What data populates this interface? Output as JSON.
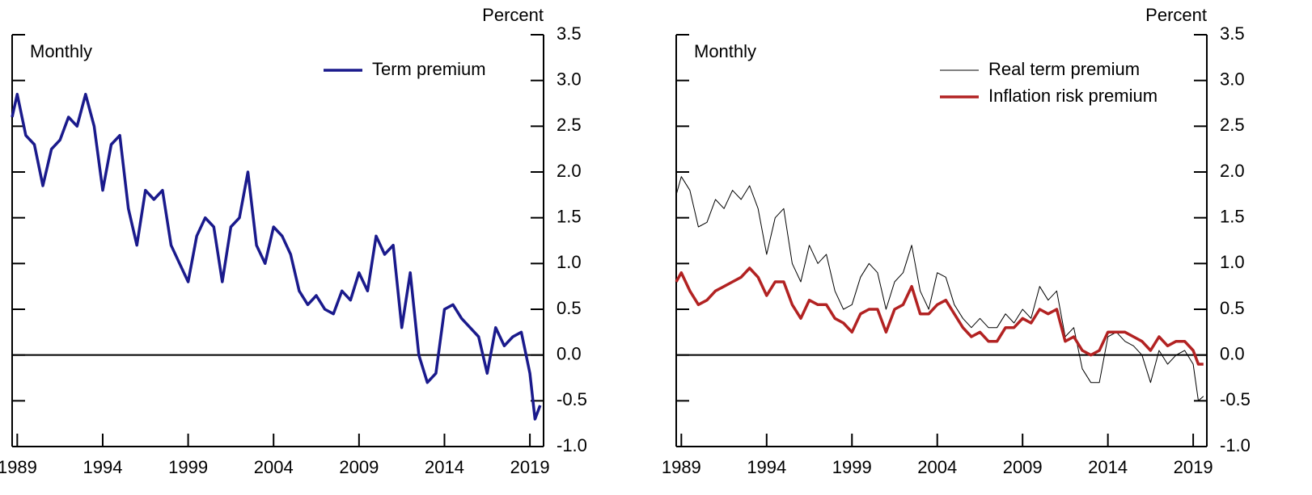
{
  "chart_data": [
    {
      "type": "line",
      "label_top": "Percent",
      "annotation": "Monthly",
      "x": [
        1988.7,
        1989.0,
        1989.5,
        1990.0,
        1990.5,
        1991.0,
        1991.5,
        1992.0,
        1992.5,
        1993.0,
        1993.5,
        1994.0,
        1994.5,
        1995.0,
        1995.5,
        1996.0,
        1996.5,
        1997.0,
        1997.5,
        1998.0,
        1998.5,
        1999.0,
        1999.5,
        2000.0,
        2000.5,
        2001.0,
        2001.5,
        2002.0,
        2002.5,
        2003.0,
        2003.5,
        2004.0,
        2004.5,
        2005.0,
        2005.5,
        2006.0,
        2006.5,
        2007.0,
        2007.5,
        2008.0,
        2008.5,
        2009.0,
        2009.5,
        2010.0,
        2010.5,
        2011.0,
        2011.5,
        2012.0,
        2012.5,
        2013.0,
        2013.5,
        2014.0,
        2014.5,
        2015.0,
        2015.5,
        2016.0,
        2016.5,
        2017.0,
        2017.5,
        2018.0,
        2018.5,
        2019.0,
        2019.3,
        2019.6
      ],
      "series": [
        {
          "name": "Term premium",
          "color": "#1a1a8c",
          "values": [
            2.6,
            2.85,
            2.4,
            2.3,
            1.85,
            2.25,
            2.35,
            2.6,
            2.5,
            2.85,
            2.5,
            1.8,
            2.3,
            2.4,
            1.6,
            1.2,
            1.8,
            1.7,
            1.8,
            1.2,
            1.0,
            0.8,
            1.3,
            1.5,
            1.4,
            0.8,
            1.4,
            1.5,
            2.0,
            1.2,
            1.0,
            1.4,
            1.3,
            1.1,
            0.7,
            0.55,
            0.65,
            0.5,
            0.45,
            0.7,
            0.6,
            0.9,
            0.7,
            1.3,
            1.1,
            1.2,
            0.3,
            0.9,
            0.0,
            -0.3,
            -0.2,
            0.5,
            0.55,
            0.4,
            0.3,
            0.2,
            -0.2,
            0.3,
            0.1,
            0.2,
            0.25,
            -0.2,
            -0.7,
            -0.55
          ]
        }
      ],
      "xlim": [
        1988.7,
        2019.8
      ],
      "xticks": [
        1989,
        1994,
        1999,
        2004,
        2009,
        2014,
        2019
      ],
      "ylim": [
        -1.0,
        3.5
      ],
      "yticks": [
        {
          "value": -1.0,
          "label": "-1.0"
        },
        -0.5,
        {
          "value": 0.0,
          "label": "0.0"
        },
        0.5,
        {
          "value": 1.0,
          "label": "1.0"
        },
        1.5,
        {
          "value": 2.0,
          "label": "2.0"
        },
        2.5,
        {
          "value": 3.0,
          "label": "3.0"
        },
        3.5
      ],
      "legend": "top-right"
    },
    {
      "type": "line",
      "label_top": "Percent",
      "annotation": "Monthly",
      "x": [
        1988.7,
        1989.0,
        1989.5,
        1990.0,
        1990.5,
        1991.0,
        1991.5,
        1992.0,
        1992.5,
        1993.0,
        1993.5,
        1994.0,
        1994.5,
        1995.0,
        1995.5,
        1996.0,
        1996.5,
        1997.0,
        1997.5,
        1998.0,
        1998.5,
        1999.0,
        1999.5,
        2000.0,
        2000.5,
        2001.0,
        2001.5,
        2002.0,
        2002.5,
        2003.0,
        2003.5,
        2004.0,
        2004.5,
        2005.0,
        2005.5,
        2006.0,
        2006.5,
        2007.0,
        2007.5,
        2008.0,
        2008.5,
        2009.0,
        2009.5,
        2010.0,
        2010.5,
        2011.0,
        2011.5,
        2012.0,
        2012.5,
        2013.0,
        2013.5,
        2014.0,
        2014.5,
        2015.0,
        2015.5,
        2016.0,
        2016.5,
        2017.0,
        2017.5,
        2018.0,
        2018.5,
        2019.0,
        2019.3,
        2019.6
      ],
      "series": [
        {
          "name": "Real term premium",
          "color": "#000000",
          "values": [
            1.75,
            1.95,
            1.8,
            1.4,
            1.45,
            1.7,
            1.6,
            1.8,
            1.7,
            1.85,
            1.6,
            1.1,
            1.5,
            1.6,
            1.0,
            0.8,
            1.2,
            1.0,
            1.1,
            0.7,
            0.5,
            0.55,
            0.85,
            1.0,
            0.9,
            0.5,
            0.8,
            0.9,
            1.2,
            0.7,
            0.5,
            0.9,
            0.85,
            0.55,
            0.4,
            0.3,
            0.4,
            0.3,
            0.3,
            0.45,
            0.35,
            0.5,
            0.4,
            0.75,
            0.6,
            0.7,
            0.2,
            0.3,
            -0.15,
            -0.3,
            -0.3,
            0.2,
            0.25,
            0.15,
            0.1,
            0.0,
            -0.3,
            0.05,
            -0.1,
            0.0,
            0.05,
            -0.1,
            -0.5,
            -0.45
          ]
        },
        {
          "name": "Inflation risk premium",
          "color": "#b22222",
          "values": [
            0.8,
            0.9,
            0.7,
            0.55,
            0.6,
            0.7,
            0.75,
            0.8,
            0.85,
            0.95,
            0.85,
            0.65,
            0.8,
            0.8,
            0.55,
            0.4,
            0.6,
            0.55,
            0.55,
            0.4,
            0.35,
            0.25,
            0.45,
            0.5,
            0.5,
            0.25,
            0.5,
            0.55,
            0.75,
            0.45,
            0.45,
            0.55,
            0.6,
            0.45,
            0.3,
            0.2,
            0.25,
            0.15,
            0.15,
            0.3,
            0.3,
            0.4,
            0.35,
            0.5,
            0.45,
            0.5,
            0.15,
            0.2,
            0.05,
            0.0,
            0.05,
            0.25,
            0.25,
            0.25,
            0.2,
            0.15,
            0.05,
            0.2,
            0.1,
            0.15,
            0.15,
            0.05,
            -0.1,
            -0.1
          ]
        }
      ],
      "xlim": [
        1988.7,
        2019.8
      ],
      "xticks": [
        1989,
        1994,
        1999,
        2004,
        2009,
        2014,
        2019
      ],
      "ylim": [
        -1.0,
        3.5
      ],
      "yticks": [
        {
          "value": -1.0,
          "label": "-1.0"
        },
        -0.5,
        {
          "value": 0.0,
          "label": "0.0"
        },
        0.5,
        {
          "value": 1.0,
          "label": "1.0"
        },
        1.5,
        {
          "value": 2.0,
          "label": "2.0"
        },
        2.5,
        {
          "value": 3.0,
          "label": "3.0"
        },
        3.5
      ],
      "legend": "top-right"
    }
  ]
}
